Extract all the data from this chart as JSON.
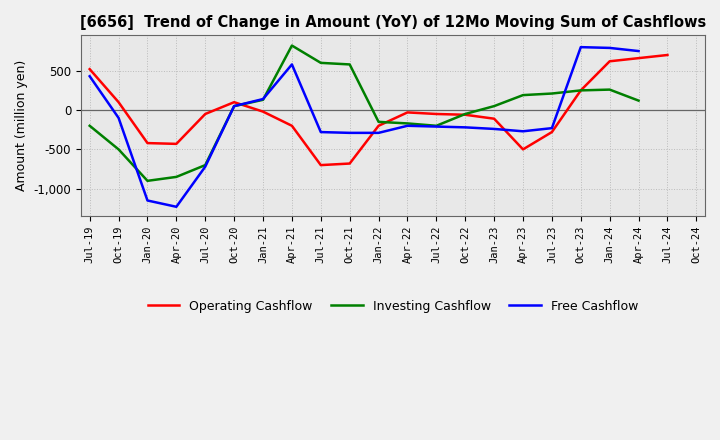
{
  "title": "[6656]  Trend of Change in Amount (YoY) of 12Mo Moving Sum of Cashflows",
  "ylabel": "Amount (million yen)",
  "x_labels": [
    "Jul-19",
    "Oct-19",
    "Jan-20",
    "Apr-20",
    "Jul-20",
    "Oct-20",
    "Jan-21",
    "Apr-21",
    "Jul-21",
    "Oct-21",
    "Jan-22",
    "Apr-22",
    "Jul-22",
    "Oct-22",
    "Jan-23",
    "Apr-23",
    "Jul-23",
    "Oct-23",
    "Jan-24",
    "Apr-24",
    "Jul-24",
    "Oct-24"
  ],
  "operating_cashflow": [
    520,
    100,
    -420,
    -430,
    -50,
    100,
    -20,
    -200,
    -700,
    -680,
    -200,
    -30,
    -50,
    -60,
    -110,
    -500,
    -280,
    250,
    620,
    660,
    700,
    null
  ],
  "investing_cashflow": [
    -200,
    -500,
    -900,
    -850,
    -700,
    50,
    130,
    820,
    600,
    580,
    -150,
    -170,
    -200,
    -50,
    50,
    190,
    210,
    250,
    260,
    120,
    null,
    null
  ],
  "free_cashflow": [
    430,
    -100,
    -1150,
    -1230,
    -720,
    50,
    140,
    580,
    -280,
    -290,
    -290,
    -200,
    -210,
    -220,
    -240,
    -270,
    -230,
    800,
    790,
    750,
    null,
    null
  ],
  "colors": {
    "operating": "#FF0000",
    "investing": "#008000",
    "free": "#0000FF"
  },
  "ylim": [
    -1350,
    950
  ],
  "yticks": [
    -1000,
    -500,
    0,
    500
  ],
  "grid_color": "#bbbbbb",
  "bg_color": "#f0f0f0",
  "plot_bg_color": "#e8e8e8"
}
